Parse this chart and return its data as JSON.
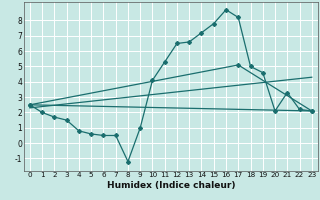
{
  "xlabel": "Humidex (Indice chaleur)",
  "xlim": [
    -0.5,
    23.5
  ],
  "ylim": [
    -1.8,
    9.2
  ],
  "yticks": [
    -1,
    0,
    1,
    2,
    3,
    4,
    5,
    6,
    7,
    8
  ],
  "xticks": [
    0,
    1,
    2,
    3,
    4,
    5,
    6,
    7,
    8,
    9,
    10,
    11,
    12,
    13,
    14,
    15,
    16,
    17,
    18,
    19,
    20,
    21,
    22,
    23
  ],
  "bg_color": "#c8e8e4",
  "grid_color": "#ffffff",
  "line_color": "#1a6e6e",
  "line1_x": [
    0,
    1,
    2,
    3,
    4,
    5,
    6,
    7,
    8,
    9,
    10,
    11,
    12,
    13,
    14,
    15,
    16,
    17,
    18,
    19,
    20,
    21,
    22,
    23
  ],
  "line1_y": [
    2.5,
    2.0,
    1.7,
    1.5,
    0.8,
    0.6,
    0.5,
    0.5,
    -1.2,
    1.0,
    4.1,
    5.3,
    6.5,
    6.6,
    7.2,
    7.8,
    8.7,
    8.2,
    5.0,
    4.6,
    2.1,
    3.3,
    2.2,
    2.1
  ],
  "line2_x": [
    0,
    23
  ],
  "line2_y": [
    2.5,
    2.1
  ],
  "line3_x": [
    0,
    23
  ],
  "line3_y": [
    2.3,
    4.3
  ],
  "line4_x": [
    0,
    17,
    23
  ],
  "line4_y": [
    2.5,
    5.1,
    2.1
  ]
}
